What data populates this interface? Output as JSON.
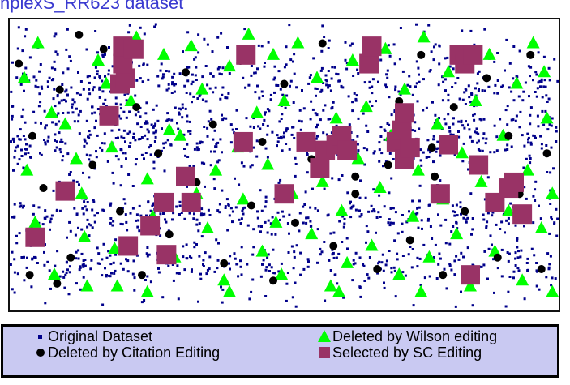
{
  "title": "nplexS_RR623 dataset",
  "colors": {
    "original": "#00008b",
    "citation": "#000000",
    "wilson": "#00ff00",
    "sc": "#993366",
    "legend_bg": "#c9c9f2",
    "title": "#3a3ad0"
  },
  "legend": {
    "original": "Original Dataset",
    "citation": "Deleted by Citation Editing",
    "wilson": "Deleted by Wilson editing",
    "sc": "Selected by SC Editing"
  },
  "chart_data": {
    "type": "scatter",
    "grid": false,
    "legend_position": "bottom",
    "series": [
      {
        "name": "Deleted by Wilson editing",
        "marker": "triangle",
        "points": [
          [
            6,
            52
          ],
          [
            9,
            70
          ],
          [
            15,
            32
          ],
          [
            20,
            36
          ],
          [
            24,
            48
          ],
          [
            26,
            60
          ],
          [
            27,
            75
          ],
          [
            32,
            14
          ],
          [
            35,
            22
          ],
          [
            37,
            44
          ],
          [
            38,
            79
          ],
          [
            39,
            92
          ],
          [
            44,
            28
          ],
          [
            46,
            6
          ],
          [
            50,
            55
          ],
          [
            52,
            68
          ],
          [
            56,
            12
          ],
          [
            58,
            38
          ],
          [
            60,
            82
          ],
          [
            62,
            40
          ],
          [
            66,
            9
          ],
          [
            68,
            60
          ],
          [
            70,
            24
          ],
          [
            72,
            72
          ],
          [
            75,
            52
          ],
          [
            78,
            90
          ],
          [
            80,
            16
          ],
          [
            83,
            44
          ],
          [
            85,
            62
          ],
          [
            87,
            5
          ],
          [
            90,
            32
          ],
          [
            92,
            80
          ],
          [
            94,
            50
          ],
          [
            96,
            12
          ],
          [
            97,
            70
          ],
          [
            99,
            88
          ],
          [
            100,
            28
          ],
          [
            103,
            60
          ],
          [
            105,
            8
          ],
          [
            108,
            42
          ],
          [
            110,
            74
          ],
          [
            112,
            20
          ],
          [
            114,
            56
          ],
          [
            117,
            92
          ],
          [
            119,
            34
          ],
          [
            121,
            66
          ],
          [
            123,
            84
          ],
          [
            125,
            14
          ],
          [
            127,
            48
          ],
          [
            130,
            30
          ],
          [
            132,
            78
          ],
          [
            135,
            58
          ],
          [
            137,
            10
          ],
          [
            139,
            40
          ],
          [
            142,
            88
          ],
          [
            144,
            24
          ],
          [
            147,
            68
          ],
          [
            149,
            52
          ],
          [
            151,
            6
          ],
          [
            153,
            82
          ],
          [
            156,
            36
          ],
          [
            158,
            62
          ],
          [
            160,
            18
          ],
          [
            163,
            74
          ],
          [
            165,
            46
          ],
          [
            168,
            92
          ],
          [
            170,
            28
          ],
          [
            172,
            56
          ],
          [
            175,
            12
          ],
          [
            177,
            80
          ],
          [
            180,
            40
          ],
          [
            182,
            66
          ],
          [
            185,
            22
          ],
          [
            187,
            90
          ],
          [
            189,
            52
          ],
          [
            191,
            8
          ],
          [
            194,
            72
          ],
          [
            196,
            34
          ],
          [
            198,
            60
          ],
          [
            16,
            88
          ],
          [
            28,
            92
          ],
          [
            50,
            94
          ],
          [
            80,
            94
          ],
          [
            120,
            94
          ],
          [
            150,
            94
          ],
          [
            5,
            20
          ],
          [
            10,
            8
          ],
          [
            198,
            94
          ],
          [
            195,
            18
          ]
        ]
      },
      {
        "name": "Deleted by Citation Editing",
        "marker": "circle",
        "points": [
          [
            8,
            40
          ],
          [
            12,
            58
          ],
          [
            18,
            24
          ],
          [
            22,
            82
          ],
          [
            30,
            50
          ],
          [
            34,
            10
          ],
          [
            40,
            66
          ],
          [
            46,
            30
          ],
          [
            48,
            88
          ],
          [
            54,
            46
          ],
          [
            58,
            74
          ],
          [
            64,
            18
          ],
          [
            68,
            56
          ],
          [
            74,
            36
          ],
          [
            78,
            84
          ],
          [
            84,
            14
          ],
          [
            88,
            64
          ],
          [
            92,
            42
          ],
          [
            96,
            90
          ],
          [
            100,
            22
          ],
          [
            104,
            70
          ],
          [
            110,
            48
          ],
          [
            114,
            8
          ],
          [
            118,
            78
          ],
          [
            122,
            38
          ],
          [
            126,
            60
          ],
          [
            130,
            16
          ],
          [
            134,
            86
          ],
          [
            138,
            50
          ],
          [
            142,
            28
          ],
          [
            146,
            76
          ],
          [
            150,
            12
          ],
          [
            154,
            44
          ],
          [
            158,
            88
          ],
          [
            162,
            30
          ],
          [
            166,
            66
          ],
          [
            170,
            50
          ],
          [
            174,
            20
          ],
          [
            178,
            82
          ],
          [
            182,
            40
          ],
          [
            186,
            60
          ],
          [
            190,
            12
          ],
          [
            194,
            86
          ],
          [
            196,
            46
          ],
          [
            17,
            91
          ],
          [
            3,
            15
          ],
          [
            25,
            5
          ],
          [
            7,
            88
          ],
          [
            155,
            54
          ],
          [
            126,
            54
          ]
        ]
      },
      {
        "name": "Selected by SC Editing",
        "marker": "square",
        "points": [
          [
            9,
            75
          ],
          [
            20,
            59
          ],
          [
            43,
            78
          ],
          [
            51,
            71
          ],
          [
            57,
            81
          ],
          [
            56,
            63
          ],
          [
            66,
            63
          ],
          [
            64,
            54
          ],
          [
            85,
            42
          ],
          [
            86,
            12
          ],
          [
            100,
            60
          ],
          [
            108,
            42
          ],
          [
            113,
            51
          ],
          [
            115,
            45
          ],
          [
            119,
            43
          ],
          [
            121,
            40
          ],
          [
            123,
            45
          ],
          [
            131,
            15
          ],
          [
            132,
            9
          ],
          [
            141,
            42
          ],
          [
            143,
            38
          ],
          [
            144,
            32
          ],
          [
            144,
            48
          ],
          [
            146,
            44
          ],
          [
            157,
            60
          ],
          [
            160,
            43
          ],
          [
            164,
            12
          ],
          [
            166,
            15
          ],
          [
            169,
            12
          ],
          [
            171,
            50
          ],
          [
            177,
            63
          ],
          [
            182,
            58
          ],
          [
            184,
            56
          ],
          [
            187,
            67
          ],
          [
            36,
            33
          ],
          [
            40,
            22
          ],
          [
            42,
            20
          ],
          [
            41,
            15
          ],
          [
            41,
            9
          ],
          [
            45,
            10
          ],
          [
            168,
            88
          ]
        ]
      }
    ]
  }
}
